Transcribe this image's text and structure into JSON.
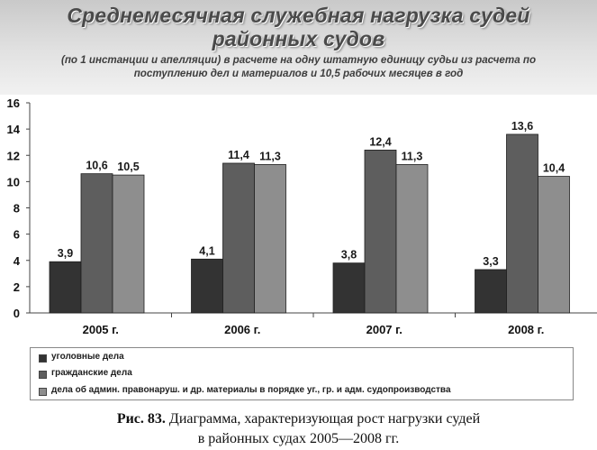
{
  "header": {
    "title_line1": "Среднемесячная служебная нагрузка судей",
    "title_line2": "районных судов",
    "subtitle_line1": "(по 1 инстанции и апелляции) в расчете на одну штатную единицу судьи из расчета по",
    "subtitle_line2": "поступлению дел и материалов и 10,5 рабочих месяцев в год"
  },
  "chart_data": {
    "type": "bar",
    "categories": [
      "2005 г.",
      "2006 г.",
      "2007 г.",
      "2008 г."
    ],
    "series": [
      {
        "name": "уголовные дела",
        "values": [
          3.9,
          4.1,
          3.8,
          3.3
        ],
        "labels": [
          "3,9",
          "4,1",
          "3,8",
          "3,3"
        ],
        "color": "#333333"
      },
      {
        "name": "гражданские дела",
        "values": [
          10.6,
          11.4,
          12.4,
          13.6
        ],
        "labels": [
          "10,6",
          "11,4",
          "12,4",
          "13,6"
        ],
        "color": "#5e5e5e"
      },
      {
        "name": "дела об админ. правонаруш. и др. материалы в порядке уг., гр. и адм. судопроизводства",
        "values": [
          10.5,
          11.3,
          11.3,
          10.4
        ],
        "labels": [
          "10,5",
          "11,3",
          "11,3",
          "10,4"
        ],
        "color": "#8e8e8e"
      }
    ],
    "yticks": [
      0,
      2,
      4,
      6,
      8,
      10,
      12,
      14,
      16
    ],
    "ylim": [
      0,
      16
    ],
    "grid": false,
    "legend_position": "bottom"
  },
  "caption": {
    "figure_label": "Рис. 83.",
    "line1": " Диаграмма, характеризующая рост нагрузки судей",
    "line2": "в районных судах 2005—2008 гг."
  }
}
